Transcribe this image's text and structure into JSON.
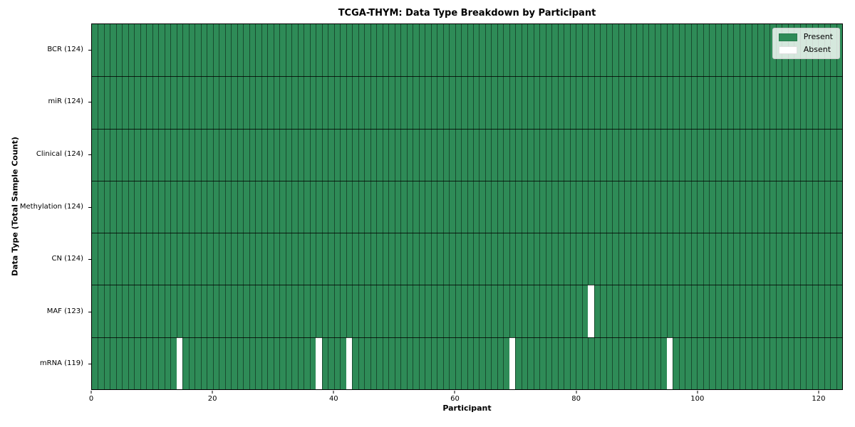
{
  "chart_data": {
    "type": "heatmap",
    "title": "TCGA-THYM: Data Type Breakdown by Participant",
    "xlabel": "Participant",
    "ylabel": "Data Type (Total Sample Count)",
    "xlim": [
      0,
      124
    ],
    "n_participants": 124,
    "x_ticks": [
      0,
      20,
      40,
      60,
      80,
      100,
      120
    ],
    "grid": true,
    "rows": [
      {
        "data_type": "BCR",
        "label": "BCR (124)",
        "total_samples": 124,
        "absent_participants": []
      },
      {
        "data_type": "miR",
        "label": "miR (124)",
        "total_samples": 124,
        "absent_participants": []
      },
      {
        "data_type": "Clinical",
        "label": "Clinical (124)",
        "total_samples": 124,
        "absent_participants": []
      },
      {
        "data_type": "Methylation",
        "label": "Methylation (124)",
        "total_samples": 124,
        "absent_participants": []
      },
      {
        "data_type": "CN",
        "label": "CN (124)",
        "total_samples": 124,
        "absent_participants": []
      },
      {
        "data_type": "MAF",
        "label": "MAF (123)",
        "total_samples": 123,
        "absent_participants": [
          82
        ]
      },
      {
        "data_type": "mRNA",
        "label": "mRNA (119)",
        "total_samples": 119,
        "absent_participants": [
          14,
          37,
          42,
          69,
          95
        ]
      }
    ],
    "legend": {
      "position": "upper-right",
      "entries": [
        {
          "label": "Present",
          "color": "#2e8b57"
        },
        {
          "label": "Absent",
          "color": "#ffffff"
        }
      ]
    },
    "colors": {
      "present": "#2e8b57",
      "absent": "#ffffff",
      "gridline": "rgba(0,0,0,0.45)",
      "row_separator": "rgba(0,0,0,0.8)",
      "spine": "#000000"
    }
  }
}
